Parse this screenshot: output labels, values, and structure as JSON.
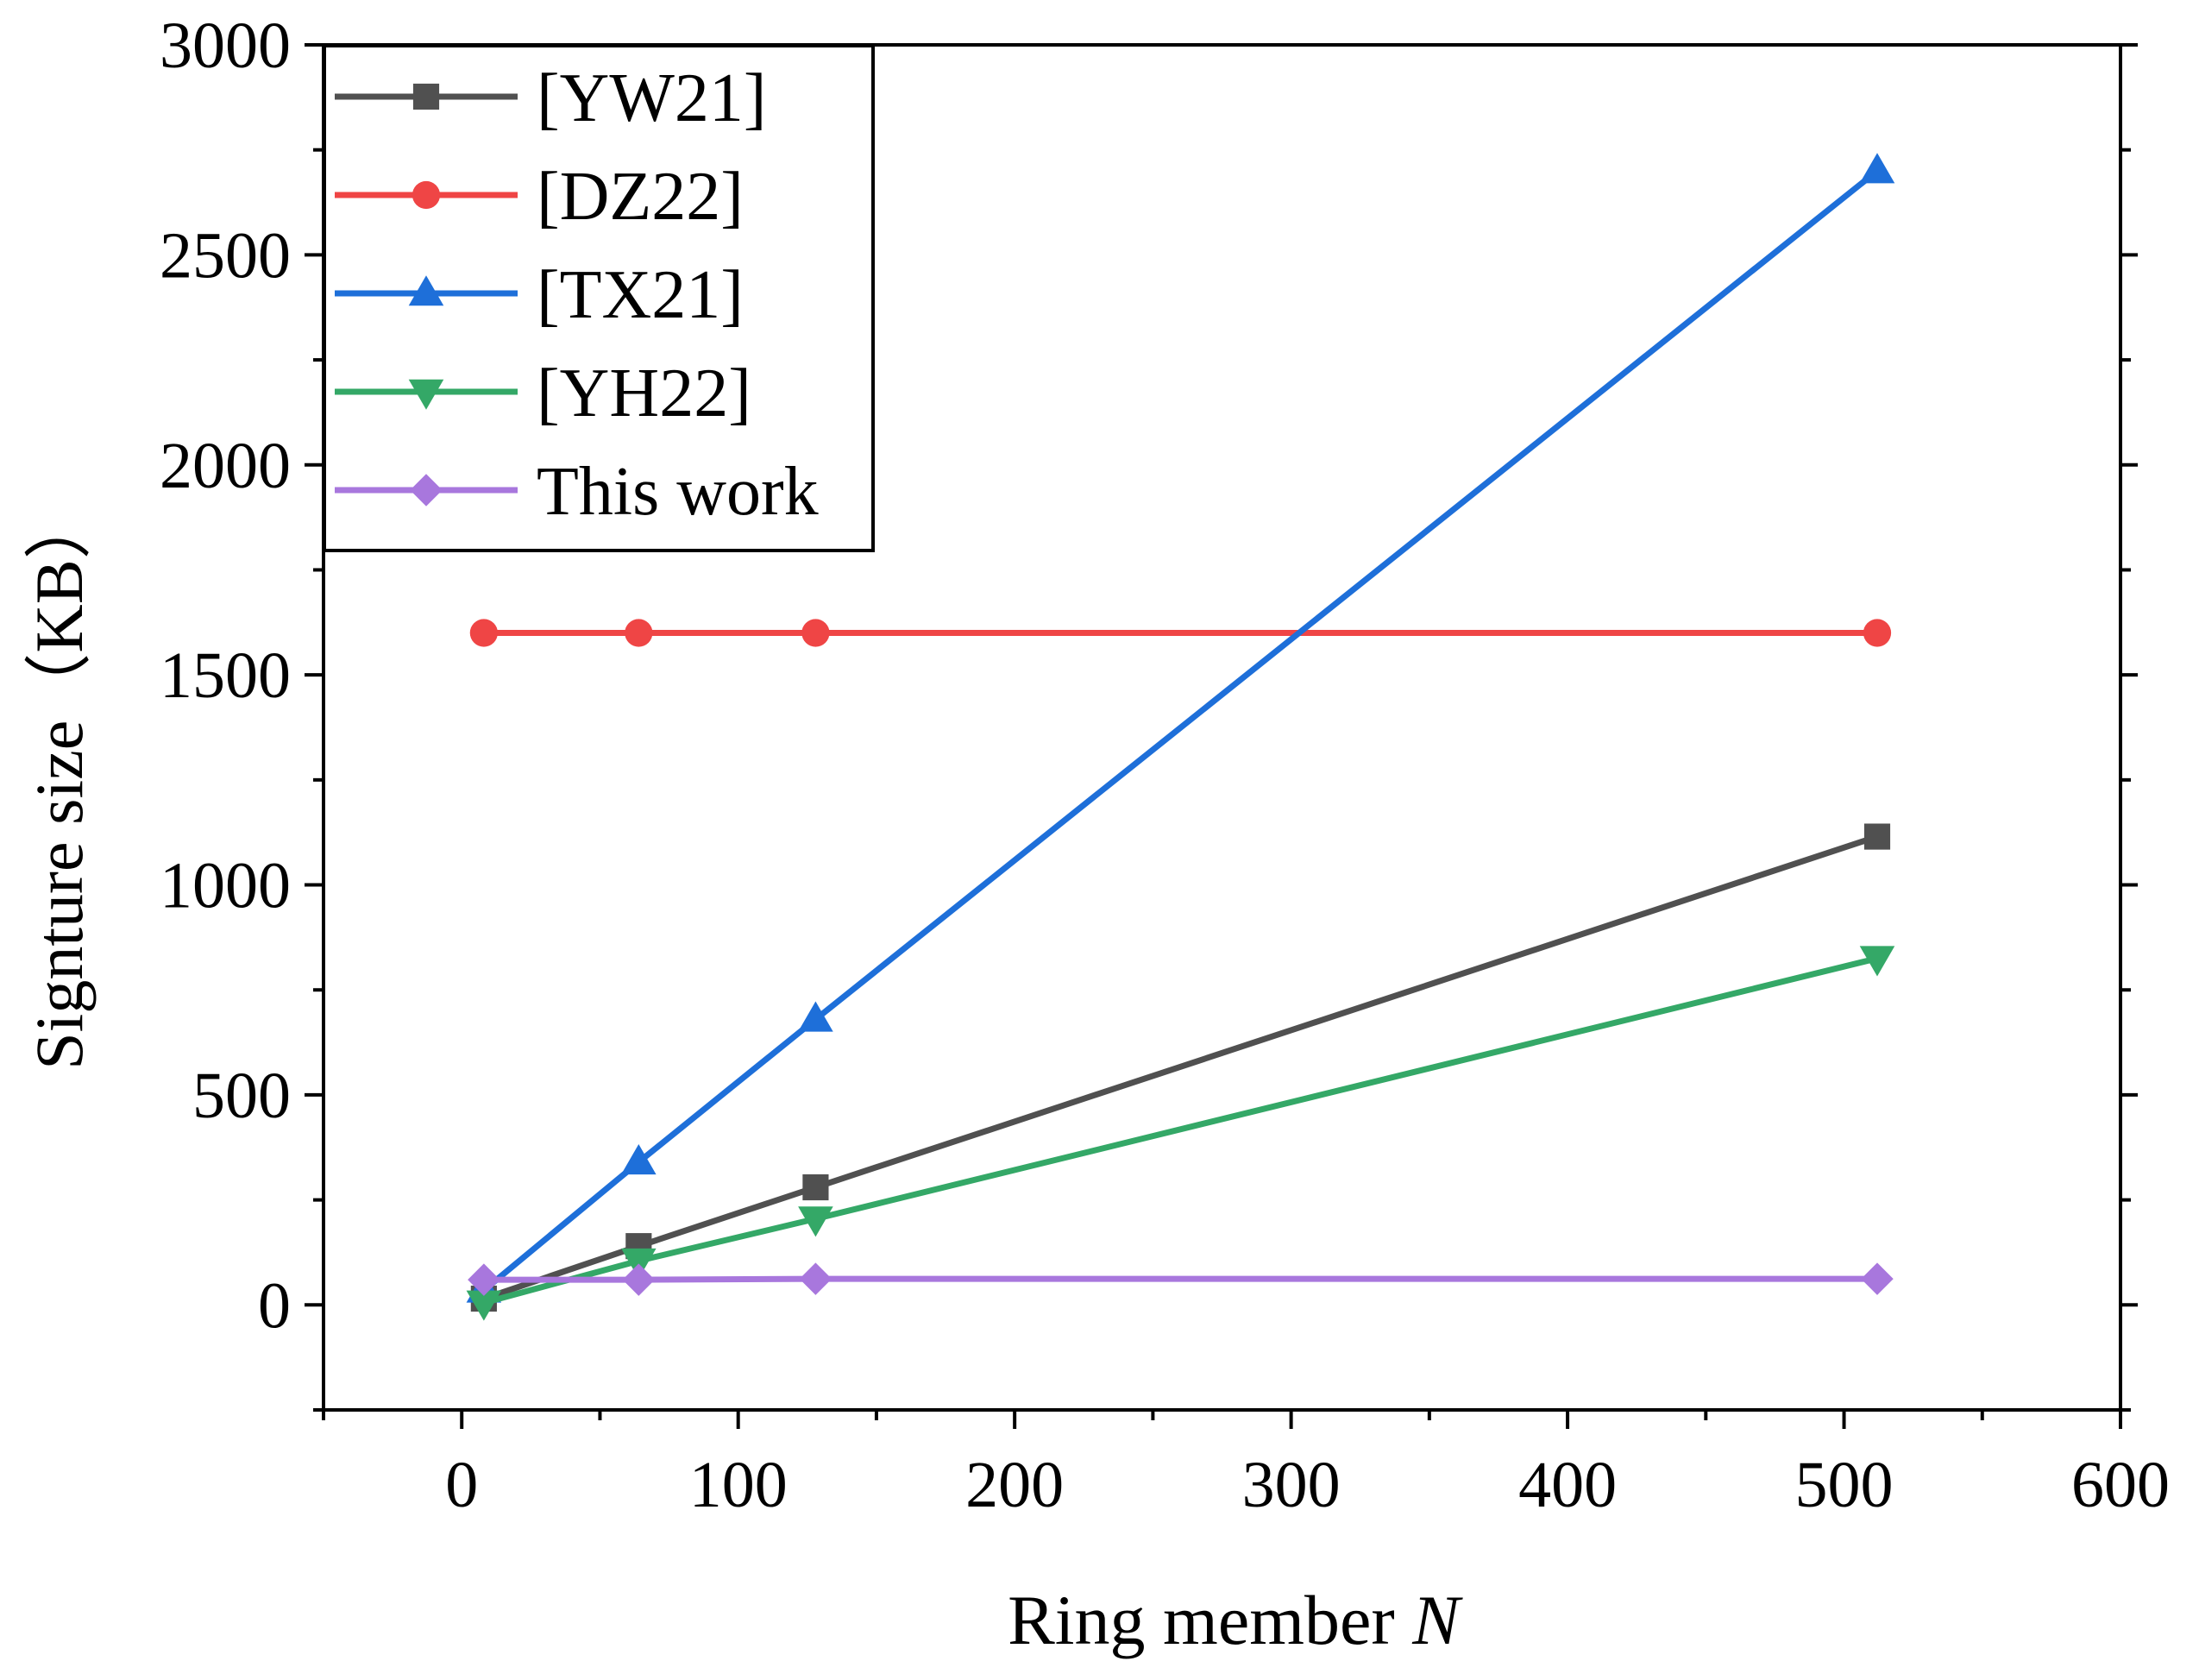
{
  "chart_data": {
    "type": "line",
    "title": "",
    "xlabel": "Ring member",
    "xlabel_var": "N",
    "ylabel": "Signture size（KB）",
    "xlim": [
      -50,
      600
    ],
    "ylim": [
      -250,
      3000
    ],
    "xticks": [
      0,
      100,
      200,
      300,
      400,
      500,
      600
    ],
    "yticks": [
      0,
      500,
      1000,
      1500,
      2000,
      2500,
      3000
    ],
    "grid": false,
    "legend_position": "top-left",
    "series": [
      {
        "name": "[YW21]",
        "color": "#505050",
        "marker": "square",
        "x": [
          8,
          64,
          128,
          512
        ],
        "y": [
          15,
          140,
          280,
          1115
        ]
      },
      {
        "name": "[DZ22]",
        "color": "#ef4545",
        "marker": "circle",
        "x": [
          8,
          64,
          128,
          512
        ],
        "y": [
          1600,
          1600,
          1600,
          1600
        ]
      },
      {
        "name": "[TX21]",
        "color": "#1e6fd9",
        "marker": "triangle-up",
        "x": [
          8,
          64,
          128,
          512
        ],
        "y": [
          35,
          340,
          680,
          2700
        ]
      },
      {
        "name": "[YH22]",
        "color": "#34a867",
        "marker": "triangle-down",
        "x": [
          8,
          64,
          128,
          512
        ],
        "y": [
          5,
          105,
          205,
          825
        ]
      },
      {
        "name": "This work",
        "color": "#a877dd",
        "marker": "diamond",
        "x": [
          8,
          64,
          128,
          512
        ],
        "y": [
          60,
          60,
          62,
          62
        ]
      }
    ]
  }
}
